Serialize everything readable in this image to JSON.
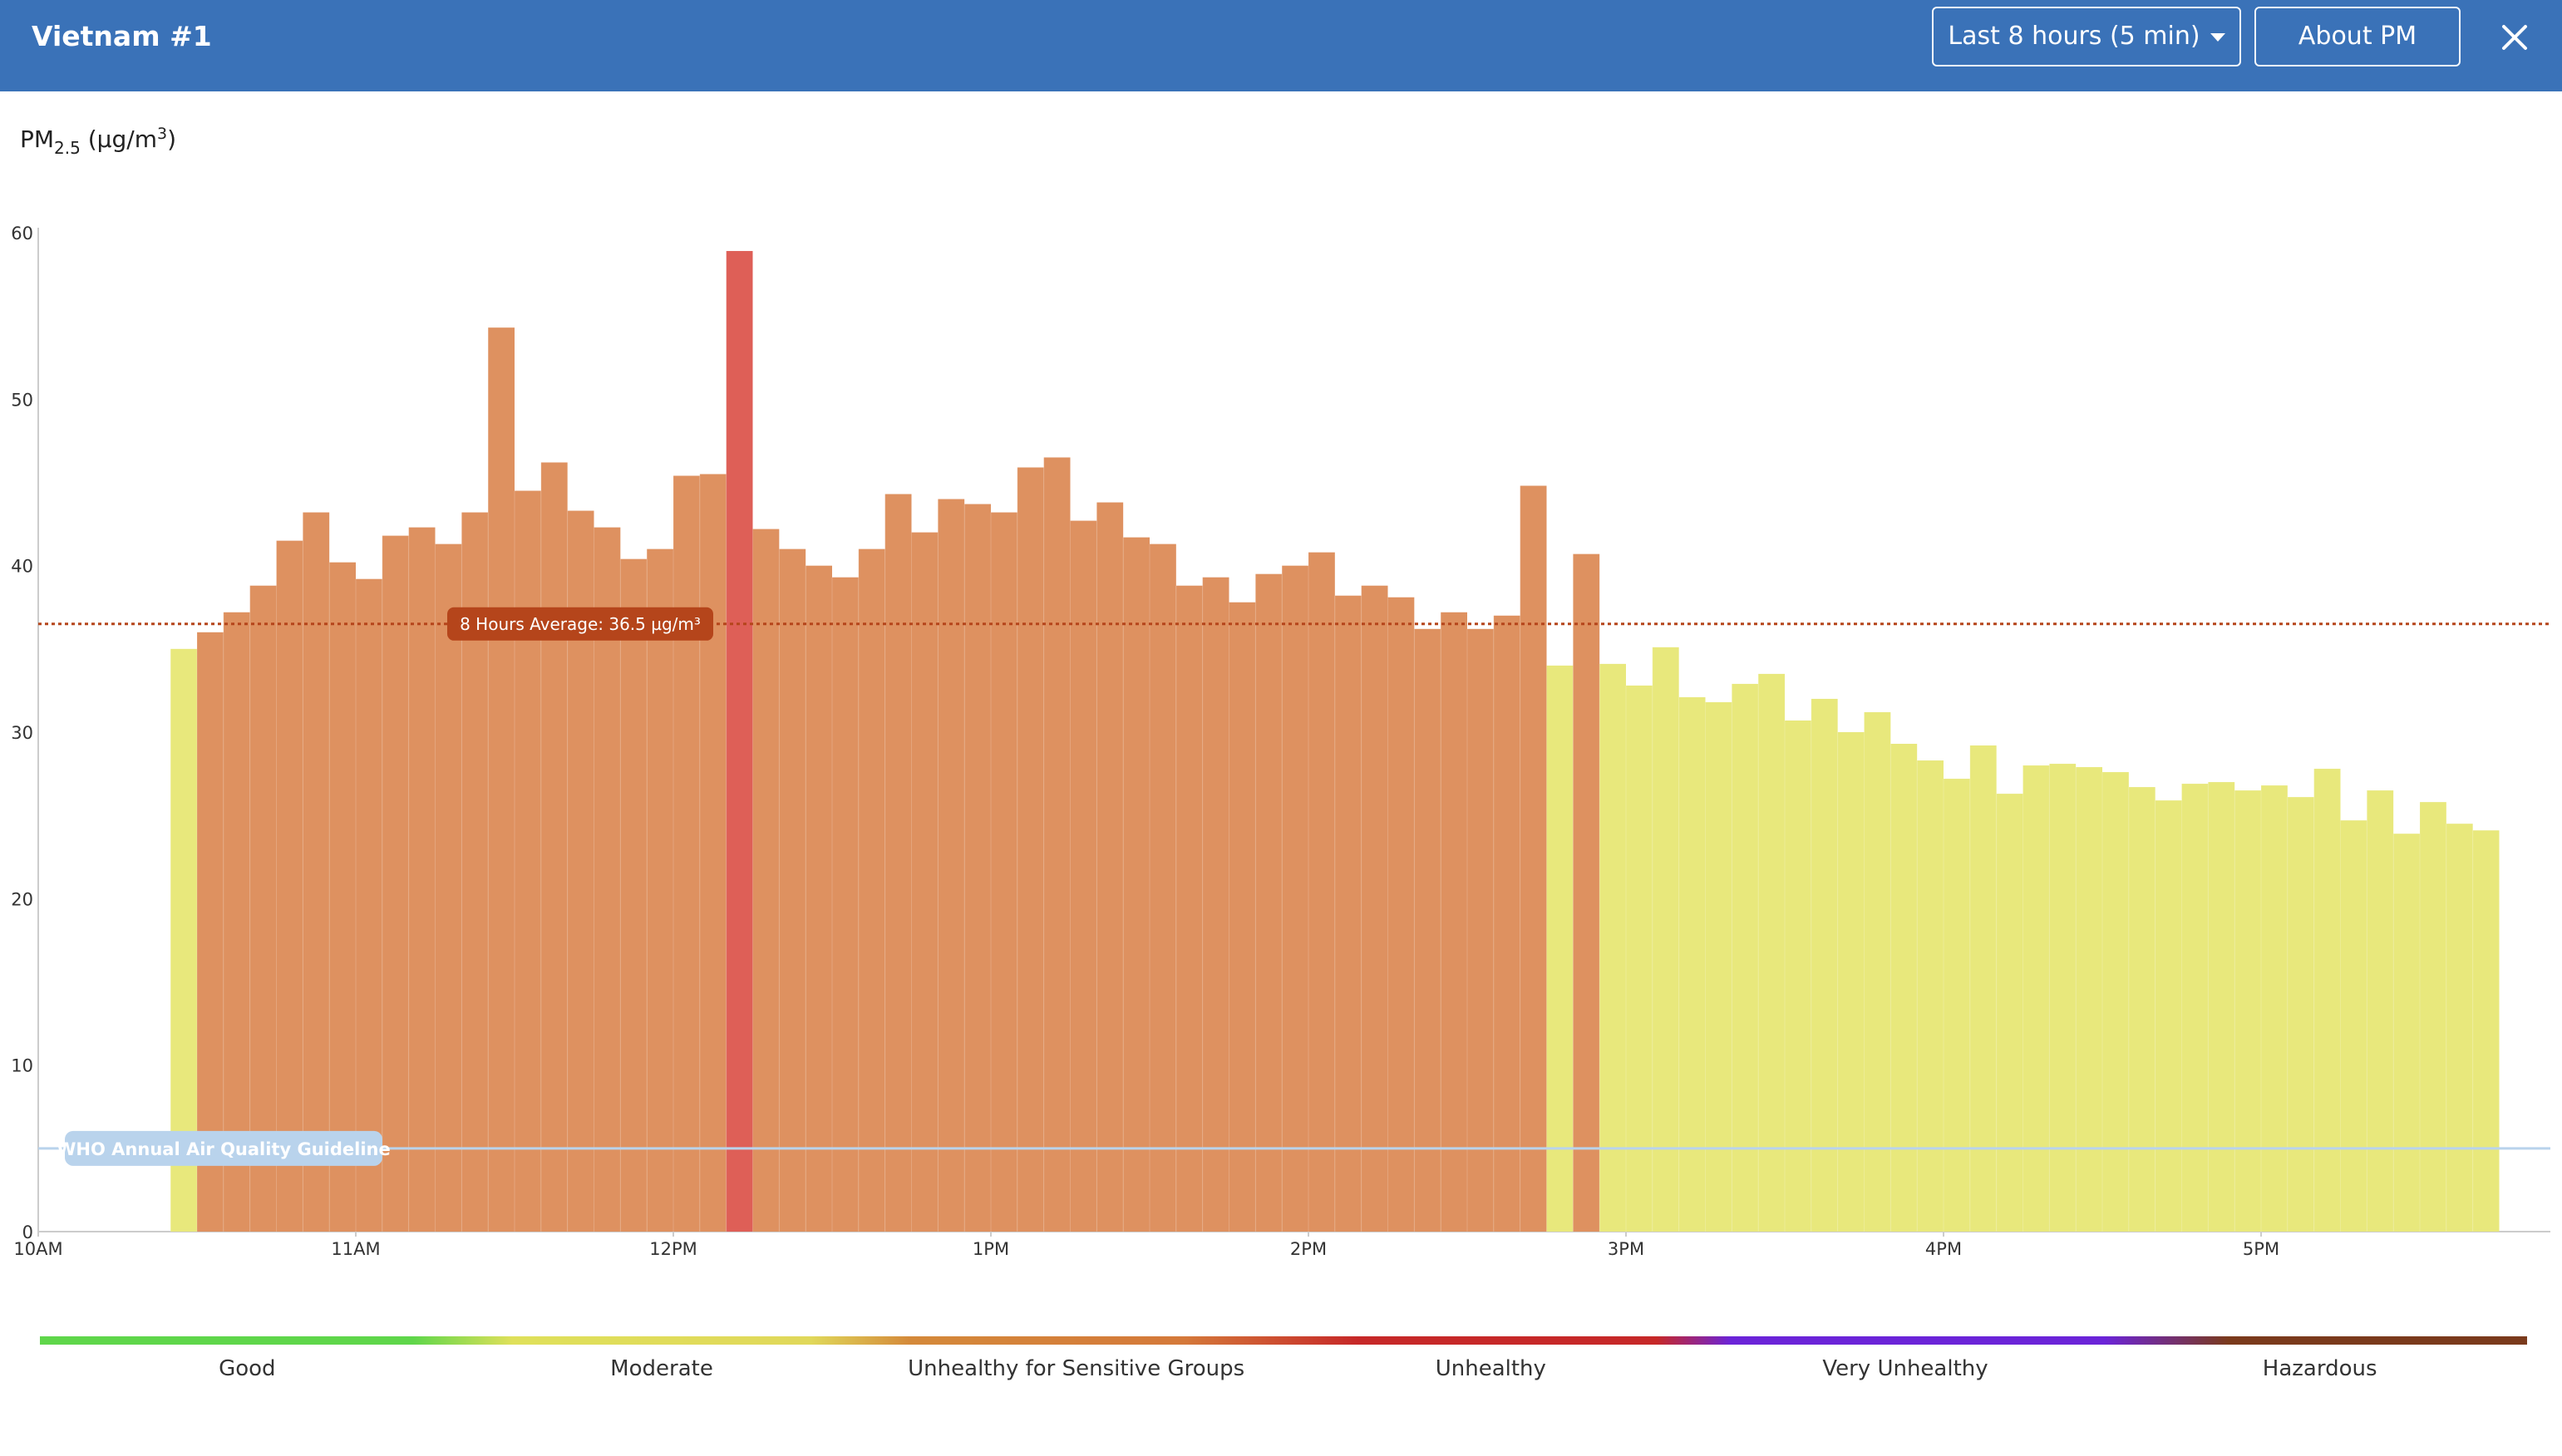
{
  "header": {
    "title": "Vietnam #1",
    "range_label": "Last 8 hours (5 min)",
    "about_label": "About PM",
    "close_icon": "close-icon",
    "caret_icon": "chevron-down-icon",
    "background": "#3a72b8"
  },
  "y_title": {
    "prefix": "PM",
    "sub": "2.5",
    "units_open": " (µg/m",
    "sup": "3",
    "units_close": ")"
  },
  "colors": {
    "moderate": "#e8e87c",
    "usg": "#de9160",
    "unhealthy": "#de5f57",
    "average_line": "#b5451b",
    "average_label_bg": "#b5451b",
    "who_line": "#b9d3ec",
    "who_label_bg": "#b9d3ec"
  },
  "chart_data": {
    "type": "bar",
    "title": "",
    "ylabel": "PM2.5 (µg/m3)",
    "ylim": [
      0,
      60
    ],
    "yticks": [
      0,
      10,
      20,
      30,
      40,
      50,
      60
    ],
    "x_tick_labels": [
      "10AM",
      "11AM",
      "12PM",
      "1PM",
      "2PM",
      "3PM",
      "4PM",
      "5PM"
    ],
    "x_start": "10:00",
    "interval": "5 min",
    "bars": [
      {
        "time": "10:25",
        "value": 35.0,
        "level": "moderate"
      },
      {
        "time": "10:30",
        "value": 36.0,
        "level": "usg"
      },
      {
        "time": "10:35",
        "value": 37.2,
        "level": "usg"
      },
      {
        "time": "10:40",
        "value": 38.8,
        "level": "usg"
      },
      {
        "time": "10:45",
        "value": 41.5,
        "level": "usg"
      },
      {
        "time": "10:50",
        "value": 43.2,
        "level": "usg"
      },
      {
        "time": "10:55",
        "value": 40.2,
        "level": "usg"
      },
      {
        "time": "11:00",
        "value": 39.2,
        "level": "usg"
      },
      {
        "time": "11:05",
        "value": 41.8,
        "level": "usg"
      },
      {
        "time": "11:10",
        "value": 42.3,
        "level": "usg"
      },
      {
        "time": "11:15",
        "value": 41.3,
        "level": "usg"
      },
      {
        "time": "11:20",
        "value": 43.2,
        "level": "usg"
      },
      {
        "time": "11:25",
        "value": 54.3,
        "level": "usg"
      },
      {
        "time": "11:30",
        "value": 44.5,
        "level": "usg"
      },
      {
        "time": "11:35",
        "value": 46.2,
        "level": "usg"
      },
      {
        "time": "11:40",
        "value": 43.3,
        "level": "usg"
      },
      {
        "time": "11:45",
        "value": 42.3,
        "level": "usg"
      },
      {
        "time": "11:50",
        "value": 40.4,
        "level": "usg"
      },
      {
        "time": "11:55",
        "value": 41.0,
        "level": "usg"
      },
      {
        "time": "12:00",
        "value": 45.4,
        "level": "usg"
      },
      {
        "time": "12:05",
        "value": 45.5,
        "level": "usg"
      },
      {
        "time": "12:10",
        "value": 58.9,
        "level": "unhealthy"
      },
      {
        "time": "12:15",
        "value": 42.2,
        "level": "usg"
      },
      {
        "time": "12:20",
        "value": 41.0,
        "level": "usg"
      },
      {
        "time": "12:25",
        "value": 40.0,
        "level": "usg"
      },
      {
        "time": "12:30",
        "value": 39.3,
        "level": "usg"
      },
      {
        "time": "12:35",
        "value": 41.0,
        "level": "usg"
      },
      {
        "time": "12:40",
        "value": 44.3,
        "level": "usg"
      },
      {
        "time": "12:45",
        "value": 42.0,
        "level": "usg"
      },
      {
        "time": "12:50",
        "value": 44.0,
        "level": "usg"
      },
      {
        "time": "12:55",
        "value": 43.7,
        "level": "usg"
      },
      {
        "time": "13:00",
        "value": 43.2,
        "level": "usg"
      },
      {
        "time": "13:05",
        "value": 45.9,
        "level": "usg"
      },
      {
        "time": "13:10",
        "value": 46.5,
        "level": "usg"
      },
      {
        "time": "13:15",
        "value": 42.7,
        "level": "usg"
      },
      {
        "time": "13:20",
        "value": 43.8,
        "level": "usg"
      },
      {
        "time": "13:25",
        "value": 41.7,
        "level": "usg"
      },
      {
        "time": "13:30",
        "value": 41.3,
        "level": "usg"
      },
      {
        "time": "13:35",
        "value": 38.8,
        "level": "usg"
      },
      {
        "time": "13:40",
        "value": 39.3,
        "level": "usg"
      },
      {
        "time": "13:45",
        "value": 37.8,
        "level": "usg"
      },
      {
        "time": "13:50",
        "value": 39.5,
        "level": "usg"
      },
      {
        "time": "13:55",
        "value": 40.0,
        "level": "usg"
      },
      {
        "time": "14:00",
        "value": 40.8,
        "level": "usg"
      },
      {
        "time": "14:05",
        "value": 38.2,
        "level": "usg"
      },
      {
        "time": "14:10",
        "value": 38.8,
        "level": "usg"
      },
      {
        "time": "14:15",
        "value": 38.1,
        "level": "usg"
      },
      {
        "time": "14:20",
        "value": 36.2,
        "level": "usg"
      },
      {
        "time": "14:25",
        "value": 37.2,
        "level": "usg"
      },
      {
        "time": "14:30",
        "value": 36.2,
        "level": "usg"
      },
      {
        "time": "14:35",
        "value": 37.0,
        "level": "usg"
      },
      {
        "time": "14:40",
        "value": 44.8,
        "level": "usg"
      },
      {
        "time": "14:45",
        "value": 34.0,
        "level": "moderate"
      },
      {
        "time": "14:50",
        "value": 40.7,
        "level": "usg"
      },
      {
        "time": "14:55",
        "value": 34.1,
        "level": "moderate"
      },
      {
        "time": "15:00",
        "value": 32.8,
        "level": "moderate"
      },
      {
        "time": "15:05",
        "value": 35.1,
        "level": "moderate"
      },
      {
        "time": "15:10",
        "value": 32.1,
        "level": "moderate"
      },
      {
        "time": "15:15",
        "value": 31.8,
        "level": "moderate"
      },
      {
        "time": "15:20",
        "value": 32.9,
        "level": "moderate"
      },
      {
        "time": "15:25",
        "value": 33.5,
        "level": "moderate"
      },
      {
        "time": "15:30",
        "value": 30.7,
        "level": "moderate"
      },
      {
        "time": "15:35",
        "value": 32.0,
        "level": "moderate"
      },
      {
        "time": "15:40",
        "value": 30.0,
        "level": "moderate"
      },
      {
        "time": "15:45",
        "value": 31.2,
        "level": "moderate"
      },
      {
        "time": "15:50",
        "value": 29.3,
        "level": "moderate"
      },
      {
        "time": "15:55",
        "value": 28.3,
        "level": "moderate"
      },
      {
        "time": "16:00",
        "value": 27.2,
        "level": "moderate"
      },
      {
        "time": "16:05",
        "value": 29.2,
        "level": "moderate"
      },
      {
        "time": "16:10",
        "value": 26.3,
        "level": "moderate"
      },
      {
        "time": "16:15",
        "value": 28.0,
        "level": "moderate"
      },
      {
        "time": "16:20",
        "value": 28.1,
        "level": "moderate"
      },
      {
        "time": "16:25",
        "value": 27.9,
        "level": "moderate"
      },
      {
        "time": "16:30",
        "value": 27.6,
        "level": "moderate"
      },
      {
        "time": "16:35",
        "value": 26.7,
        "level": "moderate"
      },
      {
        "time": "16:40",
        "value": 25.9,
        "level": "moderate"
      },
      {
        "time": "16:45",
        "value": 26.9,
        "level": "moderate"
      },
      {
        "time": "16:50",
        "value": 27.0,
        "level": "moderate"
      },
      {
        "time": "16:55",
        "value": 26.5,
        "level": "moderate"
      },
      {
        "time": "17:00",
        "value": 26.8,
        "level": "moderate"
      },
      {
        "time": "17:05",
        "value": 26.1,
        "level": "moderate"
      },
      {
        "time": "17:10",
        "value": 27.8,
        "level": "moderate"
      },
      {
        "time": "17:15",
        "value": 24.7,
        "level": "moderate"
      },
      {
        "time": "17:20",
        "value": 26.5,
        "level": "moderate"
      },
      {
        "time": "17:25",
        "value": 23.9,
        "level": "moderate"
      },
      {
        "time": "17:30",
        "value": 25.8,
        "level": "moderate"
      },
      {
        "time": "17:35",
        "value": 24.5,
        "level": "moderate"
      },
      {
        "time": "17:40",
        "value": 24.1,
        "level": "moderate"
      }
    ],
    "average": {
      "value": 36.5,
      "label": "8 Hours Average: 36.5 µg/m³"
    },
    "who_guideline": {
      "value": 5,
      "label": "WHO Annual Air Quality Guideline"
    }
  },
  "legend": {
    "items": [
      "Good",
      "Moderate",
      "Unhealthy for Sensitive Groups",
      "Unhealthy",
      "Very Unhealthy",
      "Hazardous"
    ]
  }
}
